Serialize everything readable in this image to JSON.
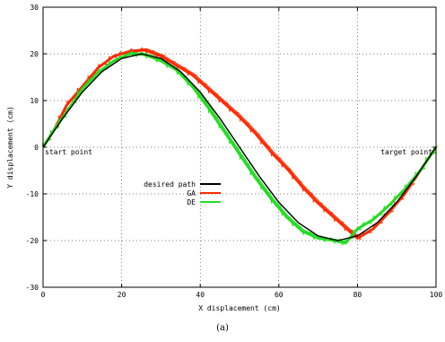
{
  "chart_data": {
    "type": "line",
    "xlabel": "X displacement (cm)",
    "ylabel": "Y displacement (cm)",
    "xlim": [
      0,
      100
    ],
    "ylim": [
      -30,
      30
    ],
    "xticks": [
      "0",
      "20",
      "40",
      "60",
      "80",
      "100"
    ],
    "yticks": [
      "-30",
      "-20",
      "-10",
      "0",
      "10",
      "20",
      "30"
    ],
    "grid": true,
    "legend": "center-left",
    "annotations": [
      {
        "text": "start point",
        "x": 0,
        "y": -1
      },
      {
        "text": "target point",
        "x": 100,
        "y": -1
      }
    ],
    "caption": "(a)",
    "series": [
      {
        "name": "desired path",
        "color": "#000000",
        "x": [
          0,
          5,
          10,
          15,
          20,
          25,
          30,
          35,
          40,
          45,
          50,
          55,
          60,
          65,
          70,
          75,
          80,
          85,
          90,
          95,
          100
        ],
        "y": [
          0,
          6.2,
          11.8,
          16.2,
          19.0,
          20.0,
          19.0,
          16.2,
          11.8,
          6.2,
          0,
          -6.2,
          -11.8,
          -16.2,
          -19.0,
          -20.0,
          -19.0,
          -16.2,
          -11.8,
          -6.2,
          0
        ]
      },
      {
        "name": "GA",
        "color": "#ff2a00",
        "x": [
          0,
          3,
          6,
          10,
          14,
          18,
          22,
          26,
          30,
          34,
          38,
          42,
          46,
          50,
          54,
          58,
          62,
          66,
          70,
          74,
          78,
          80,
          84,
          88,
          92,
          96,
          100
        ],
        "y": [
          0,
          4,
          9,
          13,
          17,
          19.5,
          20.5,
          20.8,
          19.5,
          17.5,
          15.5,
          12.5,
          9.5,
          6.5,
          3,
          -1,
          -4.5,
          -8.5,
          -12,
          -15,
          -18,
          -19.5,
          -17.5,
          -14,
          -10,
          -5,
          0
        ]
      },
      {
        "name": "DE",
        "color": "#22dd22",
        "x": [
          0,
          3,
          6,
          10,
          14,
          18,
          22,
          26,
          30,
          34,
          38,
          42,
          46,
          50,
          54,
          58,
          62,
          66,
          70,
          74,
          77,
          80,
          84,
          88,
          92,
          96,
          100
        ],
        "y": [
          0,
          4,
          7.5,
          12.5,
          16,
          18.5,
          20,
          19.8,
          18.5,
          16.5,
          13,
          8.5,
          3.5,
          -1.5,
          -6.5,
          -11,
          -15,
          -18,
          -19.5,
          -20,
          -20.5,
          -17.5,
          -15.5,
          -12.5,
          -9,
          -5,
          0
        ]
      }
    ]
  }
}
